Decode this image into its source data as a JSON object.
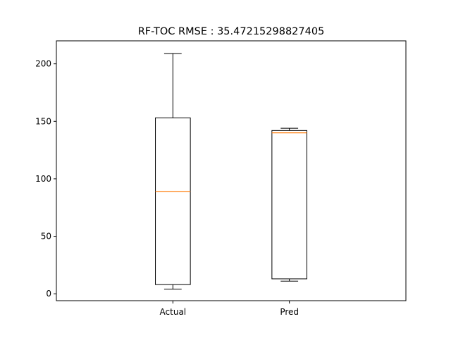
{
  "chart_data": {
    "type": "box",
    "title": "RF-TOC RMSE : 35.47215298827405",
    "xlabel": "",
    "ylabel": "",
    "categories": [
      "Actual",
      "Pred"
    ],
    "boxes": [
      {
        "name": "Actual",
        "whisker_low": 4,
        "q1": 8,
        "median": 89,
        "q3": 153,
        "whisker_high": 209
      },
      {
        "name": "Pred",
        "whisker_low": 11,
        "q1": 13,
        "median": 140,
        "q3": 142,
        "whisker_high": 144
      }
    ],
    "yticks": [
      0,
      50,
      100,
      150,
      200
    ],
    "ylim": [
      -6,
      220
    ],
    "grid": false,
    "colors": {
      "box": "#000000",
      "median": "#ff7f0e"
    }
  }
}
